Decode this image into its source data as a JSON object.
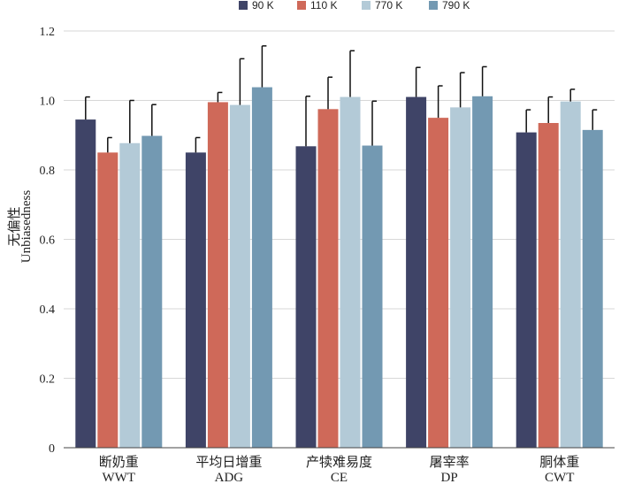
{
  "chart_data": {
    "type": "bar",
    "title": "",
    "xlabel": "",
    "ylabel_cn": "无偏性",
    "ylabel": "Unbiasedness",
    "ylim": [
      0,
      1.2
    ],
    "yticks": [
      "0",
      "0.2",
      "0.4",
      "0.6",
      "0.8",
      "1.0",
      "1.2"
    ],
    "ytick_values": [
      0,
      0.2,
      0.4,
      0.6,
      0.8,
      1.0,
      1.2
    ],
    "grid": "horizontal",
    "legend_position": "top",
    "categories": [
      {
        "cn": "断奶重",
        "en": "WWT"
      },
      {
        "cn": "平均日增重",
        "en": "ADG"
      },
      {
        "cn": "产犊难易度",
        "en": "CE"
      },
      {
        "cn": "屠宰率",
        "en": "DP"
      },
      {
        "cn": "胴体重",
        "en": "CWT"
      }
    ],
    "series": [
      {
        "name": "90 K",
        "color": "#3f4467",
        "values": [
          0.945,
          0.85,
          0.868,
          1.01,
          0.908
        ],
        "error_top": [
          1.01,
          0.893,
          1.012,
          1.095,
          0.973
        ]
      },
      {
        "name": "110 K",
        "color": "#cf6959",
        "values": [
          0.85,
          0.995,
          0.975,
          0.95,
          0.935
        ],
        "error_top": [
          0.893,
          1.023,
          1.067,
          1.042,
          1.01
        ]
      },
      {
        "name": "770 K",
        "color": "#b3cad7",
        "values": [
          0.877,
          0.987,
          1.01,
          0.98,
          0.997
        ],
        "error_top": [
          1.0,
          1.12,
          1.143,
          1.08,
          1.032
        ]
      },
      {
        "name": "790 K",
        "color": "#7399b2",
        "values": [
          0.898,
          1.038,
          0.87,
          1.012,
          0.915
        ],
        "error_top": [
          0.988,
          1.157,
          0.998,
          1.097,
          0.973
        ]
      }
    ]
  }
}
